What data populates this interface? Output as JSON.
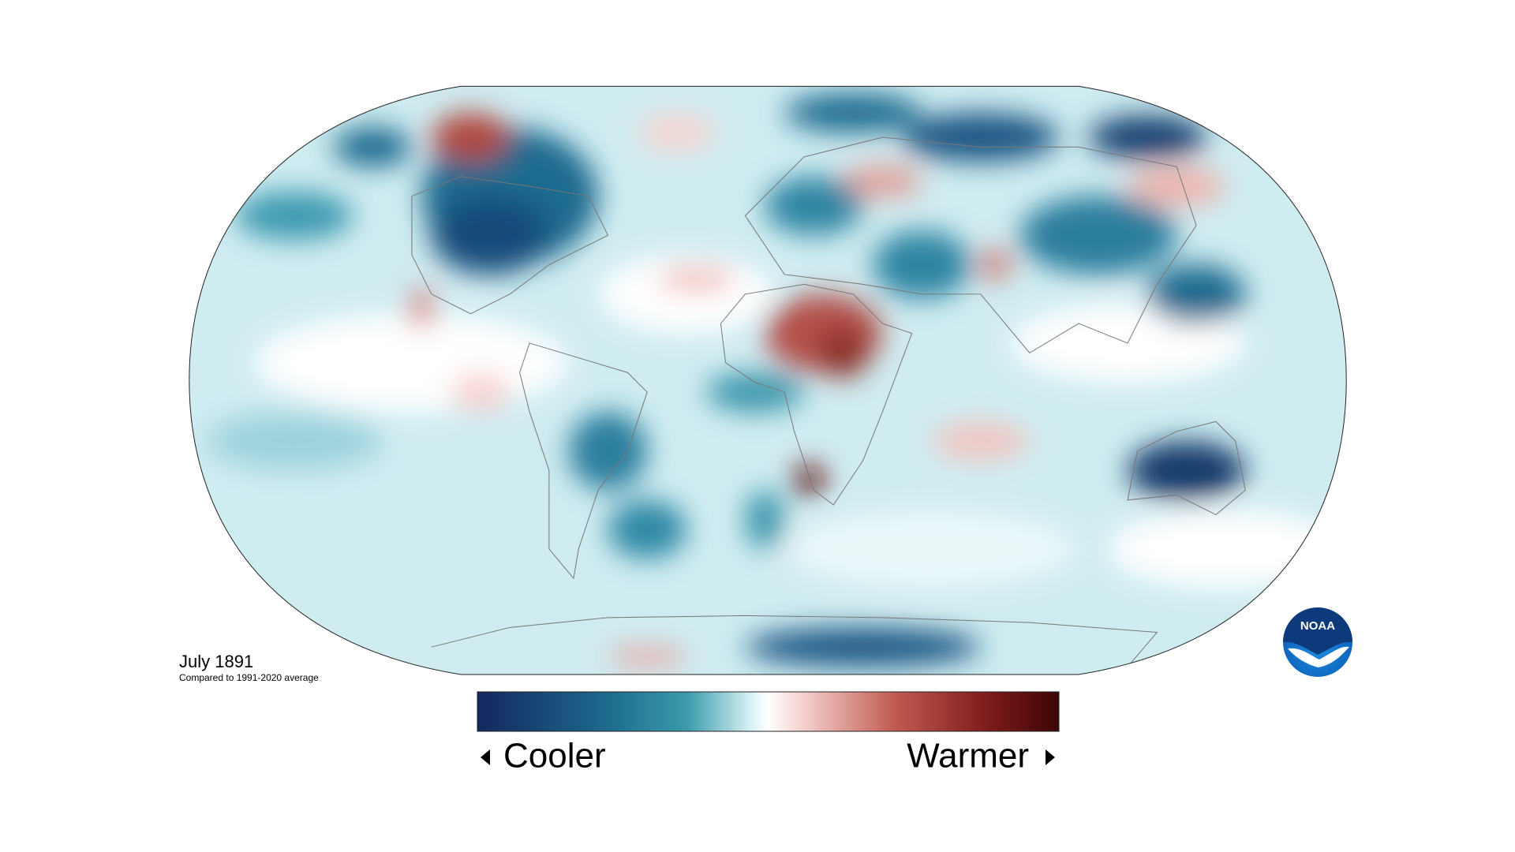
{
  "map": {
    "title": "July 1891",
    "subtitle": "Compared to 1991-2020 average"
  },
  "legend": {
    "low_label": "Cooler",
    "high_label": "Warmer"
  },
  "logo": {
    "text": "NOAA"
  }
}
